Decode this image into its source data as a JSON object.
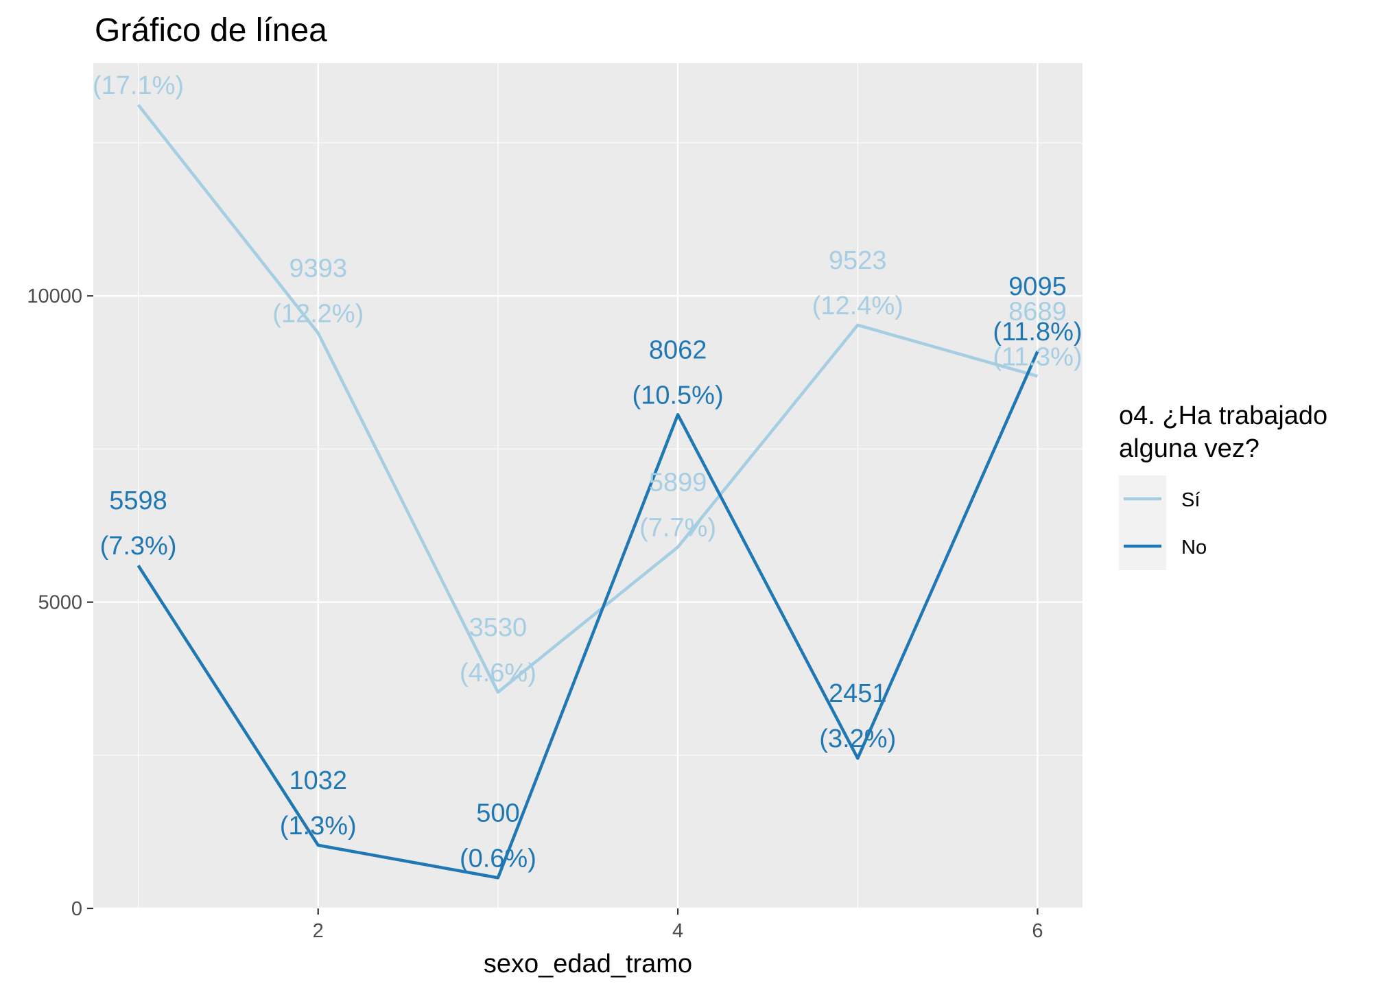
{
  "chart_data": {
    "type": "line",
    "title": "Gráfico de línea",
    "xlabel": "sexo_edad_tramo",
    "ylabel": "",
    "xlim": [
      0.75,
      6.25
    ],
    "ylim": [
      0,
      13800
    ],
    "x_ticks": [
      2,
      4,
      6
    ],
    "y_ticks": [
      0,
      5000,
      10000
    ],
    "x_tick_labels": [
      "2",
      "4",
      "6"
    ],
    "y_tick_labels": [
      "0",
      "5000",
      "10000"
    ],
    "grid": true,
    "legend_position": "right",
    "legend_title_lines": [
      "o4. ¿Ha trabajado",
      "alguna vez?"
    ],
    "x": [
      1,
      2,
      3,
      4,
      5,
      6
    ],
    "series": [
      {
        "name": "Sí",
        "color": "#a6cee3",
        "values": [
          13118,
          9393,
          3530,
          5899,
          9523,
          8689
        ],
        "count_labels": [
          "",
          "9393",
          "3530",
          "5899",
          "9523",
          "8689"
        ],
        "pct_labels": [
          "(17.1%)",
          "(12.2%)",
          "(4.6%)",
          "(7.7%)",
          "(12.4%)",
          "(11.3%)"
        ]
      },
      {
        "name": "No",
        "color": "#1f78b4",
        "values": [
          5598,
          1032,
          500,
          8062,
          2451,
          9095
        ],
        "count_labels": [
          "5598",
          "1032",
          "500",
          "8062",
          "2451",
          "9095"
        ],
        "pct_labels": [
          "(7.3%)",
          "(1.3%)",
          "(0.6%)",
          "(10.5%)",
          "(3.2%)",
          "(11.8%)"
        ]
      }
    ]
  }
}
